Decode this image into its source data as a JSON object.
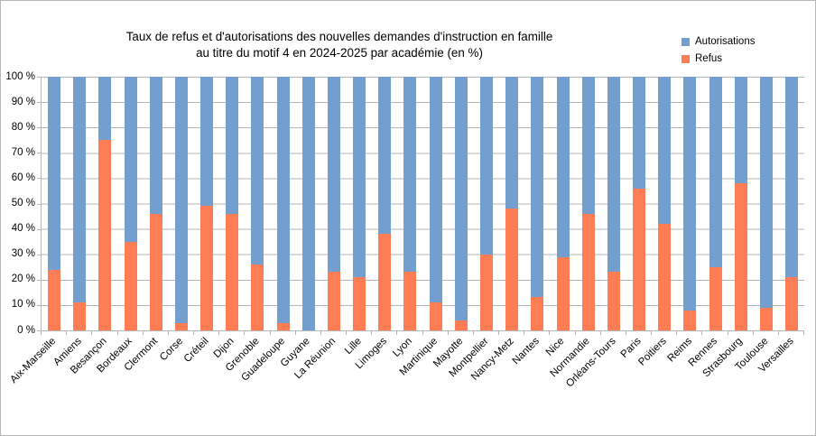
{
  "chart": {
    "title_lines": [
      "Taux de refus et d'autorisations des nouvelles demandes d'instruction en famille",
      "au titre du motif 4 en 2024-2025 par académie (en %)"
    ]
  },
  "chart_data": {
    "type": "bar",
    "stacked": true,
    "title": "Taux de refus et d'autorisations des nouvelles demandes d'instruction en famille au titre du motif 4 en 2024-2025 par académie (en %)",
    "xlabel": "",
    "ylabel": "",
    "ylim": [
      0,
      100
    ],
    "grid": "horizontal",
    "legend_position": "top-right",
    "y_ticks": [
      "0 %",
      "10 %",
      "20 %",
      "30 %",
      "40 %",
      "50 %",
      "60 %",
      "70 %",
      "80 %",
      "90 %",
      "100 %"
    ],
    "categories": [
      "Aix-Marseille",
      "Amiens",
      "Besançon",
      "Bordeaux",
      "Clermont",
      "Corse",
      "Créteil",
      "Dijon",
      "Grenoble",
      "Guadeloupe",
      "Guyane",
      "La Réunion",
      "Lille",
      "Limoges",
      "Lyon",
      "Martinique",
      "Mayotte",
      "Montpellier",
      "Nancy-Metz",
      "Nantes",
      "Nice",
      "Normandie",
      "Orléans-Tours",
      "Paris",
      "Poitiers",
      "Reims",
      "Rennes",
      "Strasbourg",
      "Toulouse",
      "Versailles"
    ],
    "series": [
      {
        "name": "Autorisations",
        "color": "#729FCF",
        "values": [
          76,
          89,
          25,
          65,
          54,
          97,
          51,
          54,
          74,
          97,
          100,
          77,
          79,
          62,
          77,
          89,
          96,
          70,
          52,
          87,
          71,
          54,
          77,
          44,
          58,
          92,
          75,
          42,
          91,
          79
        ]
      },
      {
        "name": "Refus",
        "color": "#FF7D54",
        "values": [
          24,
          11,
          75,
          35,
          46,
          3,
          49,
          46,
          26,
          3,
          0,
          23,
          21,
          38,
          23,
          11,
          4,
          30,
          48,
          13,
          29,
          46,
          23,
          56,
          42,
          8,
          25,
          58,
          9,
          21
        ]
      }
    ]
  }
}
